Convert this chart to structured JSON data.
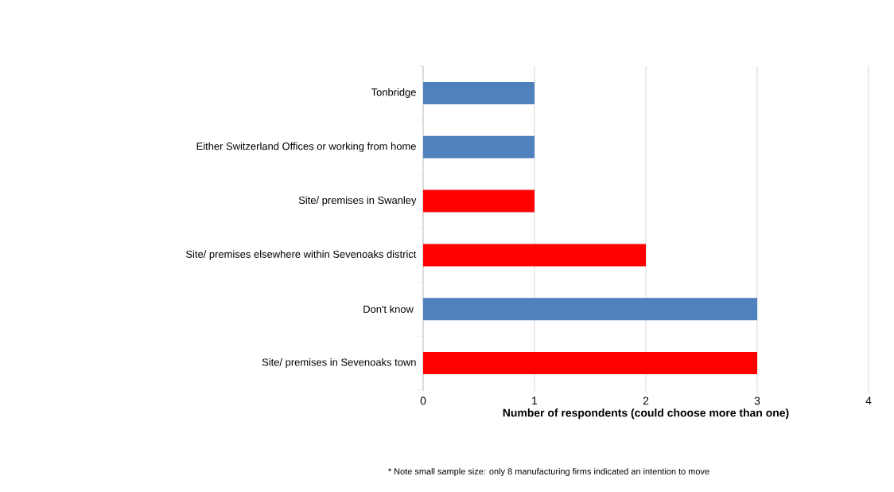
{
  "chart_data": {
    "type": "bar",
    "orientation": "horizontal",
    "categories": [
      "Tonbridge",
      "Either Switzerland Offices or working from home",
      "Site/ premises in Swanley",
      "Site/ premises elsewhere within Sevenoaks district",
      "Don't know ",
      "Site/ premises in Sevenoaks town"
    ],
    "values": [
      1,
      1,
      1,
      2,
      3,
      3
    ],
    "colors": [
      "#4f81bd",
      "#4f81bd",
      "#ff0000",
      "#ff0000",
      "#4f81bd",
      "#ff0000"
    ],
    "xlabel": "Number of respondents (could choose more than one)",
    "xlim": [
      0,
      4
    ],
    "xticks": [
      0,
      1,
      2,
      3,
      4
    ],
    "grid": "x",
    "annotations": [
      "* Note small sample size: only 8 manufacturing firms indicated an intention to move"
    ]
  }
}
